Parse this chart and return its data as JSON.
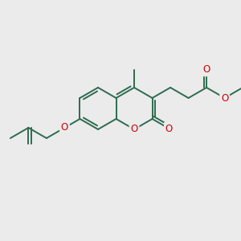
{
  "bg_color": "#ebebeb",
  "bond_color": "#2d6b4f",
  "heteroatom_color": "#cc0000",
  "bond_width": 1.4,
  "figsize": [
    3.0,
    3.0
  ],
  "dpi": 100,
  "xlim": [
    0,
    300
  ],
  "ylim": [
    0,
    300
  ]
}
